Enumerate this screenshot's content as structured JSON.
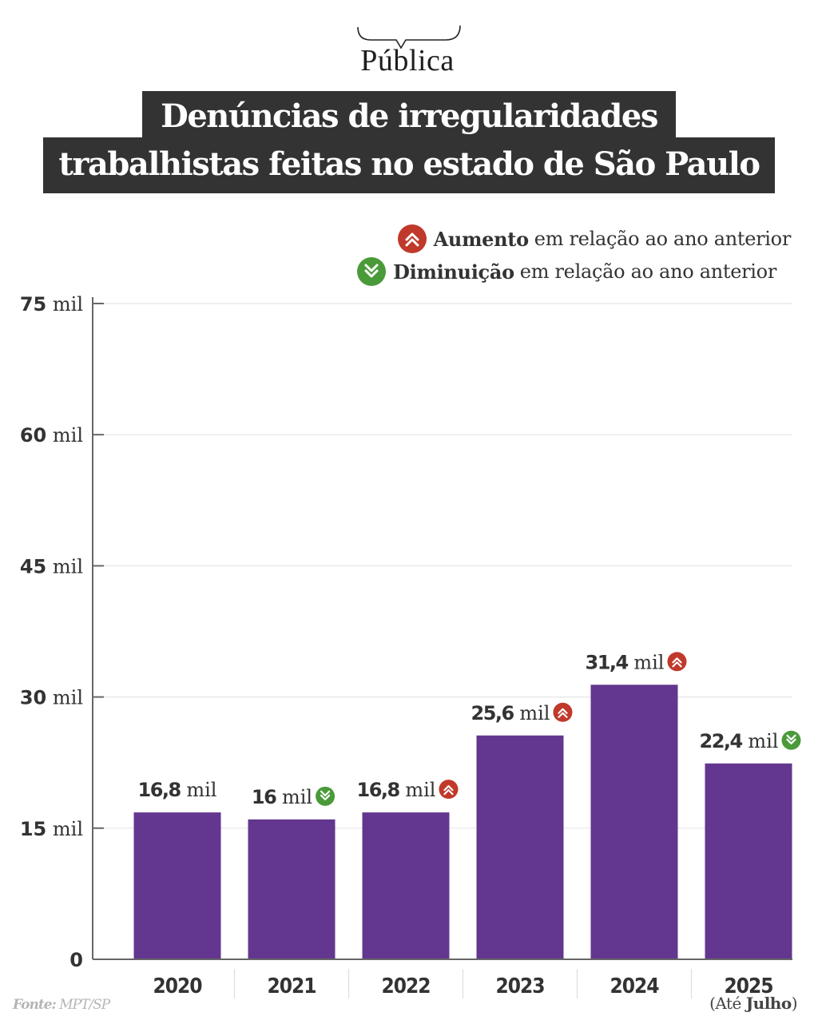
{
  "brand": {
    "logo_text": "Pública"
  },
  "header": {
    "title_line1": "Denúncias de irregularidades",
    "title_line2": "trabalhistas feitas no estado de São Paulo"
  },
  "legend": {
    "increase": {
      "bold": "Aumento",
      "text": "em relação ao ano anterior",
      "icon": "double-chevron-up-icon",
      "color": "#c0392b"
    },
    "decrease": {
      "bold": "Diminuição",
      "text": "em relação ao ano anterior",
      "icon": "double-chevron-down-icon",
      "color": "#4a9a3a"
    }
  },
  "colors": {
    "bar": "#63378f",
    "axis": "#666666",
    "grid": "#e6e6e6"
  },
  "footer": {
    "source_label": "Fonte:",
    "source_value": "MPT/SP",
    "note_prefix": "(Até",
    "note_bold": "Julho",
    "note_suffix": ")"
  },
  "chart_data": {
    "type": "bar",
    "title": "Denúncias de irregularidades trabalhistas feitas no estado de São Paulo",
    "xlabel": "",
    "ylabel": "",
    "unit": "mil",
    "categories": [
      "2020",
      "2021",
      "2022",
      "2023",
      "2024",
      "2025"
    ],
    "values": [
      16.8,
      16,
      16.8,
      25.6,
      31.4,
      22.4
    ],
    "value_labels": [
      "16,8",
      "16",
      "16,8",
      "25,6",
      "31,4",
      "22,4"
    ],
    "trend": [
      "none",
      "down",
      "up",
      "up",
      "up",
      "down"
    ],
    "ylim": [
      0,
      75
    ],
    "yticks": [
      0,
      15,
      30,
      45,
      60,
      75
    ],
    "ytick_labels": [
      "0",
      "15",
      "30",
      "45",
      "60",
      "75"
    ],
    "grid": true,
    "legend_position": "top-right"
  }
}
